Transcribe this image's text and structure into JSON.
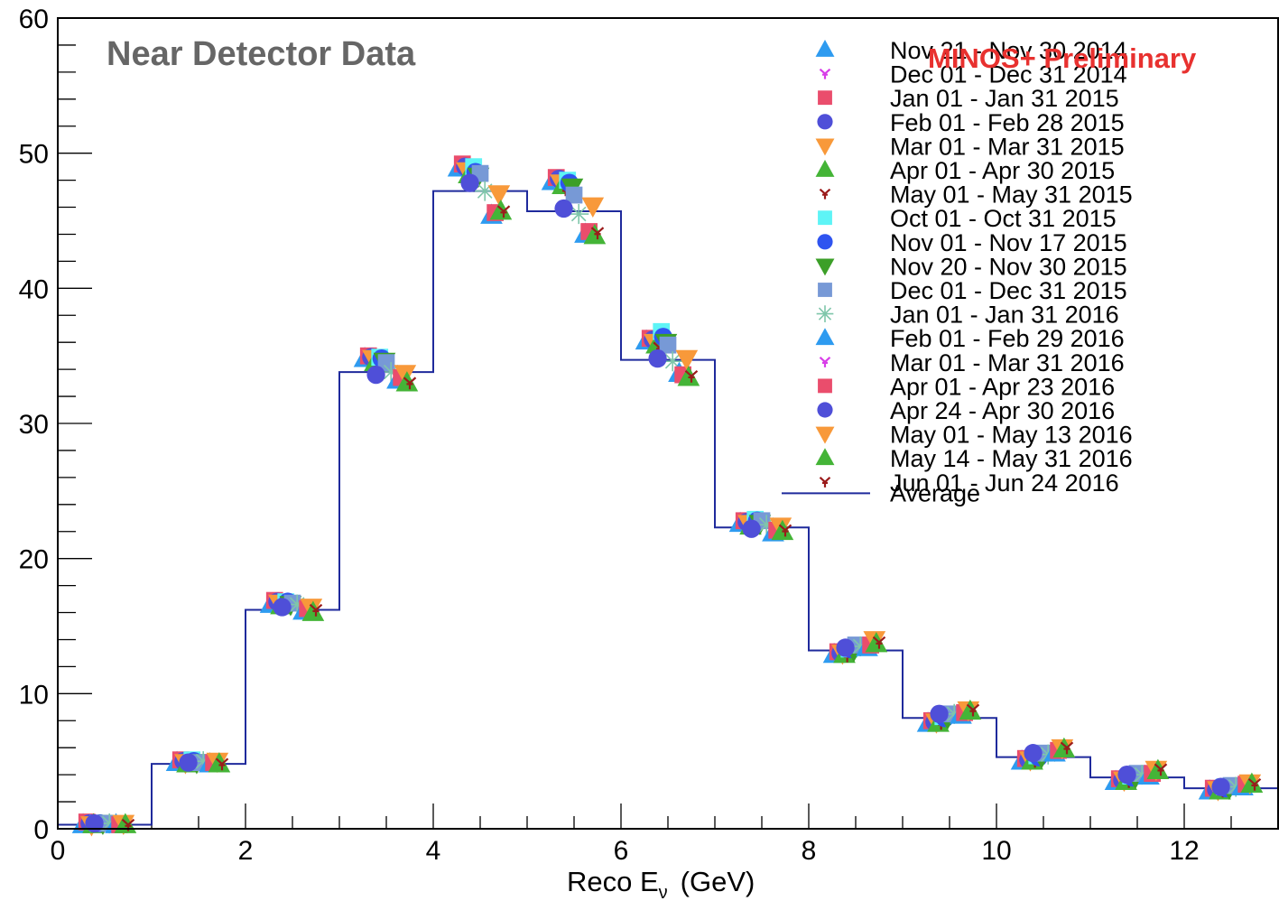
{
  "chart_data": {
    "type": "scatter",
    "title": "Near Detector Data",
    "annotation": "MINOS+ Preliminary",
    "xlabel_main": "Reco E",
    "xlabel_sub": "ν",
    "xlabel_unit": "(GeV)",
    "xlim": [
      0,
      13
    ],
    "ylim": [
      0,
      60
    ],
    "x_ticks": [
      0,
      2,
      4,
      6,
      8,
      10,
      12
    ],
    "y_ticks": [
      0,
      10,
      20,
      30,
      40,
      50,
      60
    ],
    "x_tick_labels": [
      "0",
      "2",
      "4",
      "6",
      "8",
      "10",
      "12"
    ],
    "y_tick_labels": [
      "0",
      "10",
      "20",
      "30",
      "40",
      "50",
      "60"
    ],
    "grid": false,
    "legend_position": "top-right",
    "bin_edges": [
      0,
      1,
      2,
      3,
      4,
      5,
      6,
      7,
      8,
      9,
      10,
      11,
      12,
      13
    ],
    "average": {
      "name": "Average",
      "color": "#1f2a9c",
      "values": [
        0.3,
        4.8,
        16.2,
        33.8,
        47.2,
        45.7,
        34.7,
        22.3,
        13.2,
        8.2,
        5.3,
        3.8,
        3.0
      ]
    },
    "series": [
      {
        "name": "Nov 21 - Nov 30 2014",
        "marker": "triangle",
        "color": "#2e9bf0",
        "offset": -0.23,
        "values": [
          0.3,
          4.9,
          16.6,
          34.8,
          48.9,
          47.9,
          36.1,
          22.6,
          12.9,
          7.8,
          5.0,
          3.5,
          2.8
        ]
      },
      {
        "name": "Dec 01 - Dec 31 2014",
        "marker": "star",
        "color": "#d83ee8",
        "offset": -0.21,
        "values": [
          0.4,
          5.0,
          16.8,
          34.9,
          49.0,
          48.0,
          36.2,
          22.7,
          13.0,
          7.9,
          5.1,
          3.6,
          2.9
        ]
      },
      {
        "name": "Jan 01 - Jan 31 2015",
        "marker": "square",
        "color": "#ea4d6c",
        "offset": -0.19,
        "values": [
          0.5,
          5.1,
          16.9,
          35.0,
          49.2,
          48.2,
          36.3,
          22.8,
          13.1,
          8.0,
          5.2,
          3.7,
          3.0
        ]
      },
      {
        "name": "Feb 01 - Feb 28 2015",
        "marker": "circle",
        "color": "#4f4fd8",
        "offset": -0.16,
        "values": [
          0.4,
          5.0,
          16.8,
          34.9,
          49.0,
          48.1,
          36.2,
          22.7,
          13.0,
          7.9,
          5.1,
          3.6,
          2.9
        ]
      },
      {
        "name": "Mar 01 - Mar 31 2015",
        "marker": "triangle-down",
        "color": "#f8993a",
        "offset": -0.14,
        "values": [
          0.3,
          4.9,
          16.7,
          34.8,
          48.7,
          47.8,
          36.0,
          22.6,
          13.0,
          7.9,
          5.1,
          3.6,
          2.9
        ]
      },
      {
        "name": "Apr 01 - Apr 30 2015",
        "marker": "triangle",
        "color": "#44b437",
        "offset": -0.12,
        "values": [
          0.3,
          4.8,
          16.5,
          34.5,
          48.4,
          47.6,
          35.8,
          22.4,
          12.9,
          7.8,
          5.0,
          3.5,
          2.8
        ]
      },
      {
        "name": "May 01 - May 31 2015",
        "marker": "star",
        "color": "#9b1b1b",
        "offset": -0.09,
        "values": [
          0.3,
          4.8,
          16.5,
          34.4,
          48.0,
          47.3,
          35.6,
          22.3,
          12.8,
          7.8,
          5.0,
          3.5,
          2.8
        ]
      },
      {
        "name": "Oct 01 - Oct 31 2015",
        "marker": "square",
        "color": "#5ef4f6",
        "offset": -0.07,
        "values": [
          0.4,
          5.1,
          16.8,
          34.9,
          49.0,
          48.0,
          36.8,
          22.9,
          13.3,
          8.3,
          5.4,
          3.9,
          3.1
        ]
      },
      {
        "name": "Nov 01 - Nov 17 2015",
        "marker": "circle",
        "color": "#2f54f0",
        "offset": -0.05,
        "values": [
          0.4,
          5.0,
          16.8,
          34.8,
          48.6,
          47.8,
          36.4,
          22.8,
          13.3,
          8.2,
          5.3,
          3.8,
          3.0
        ]
      },
      {
        "name": "Nov 20 - Nov 30 2015",
        "marker": "triangle-down",
        "color": "#3c9f28",
        "offset": -0.02,
        "values": [
          0.4,
          4.9,
          16.6,
          34.6,
          48.3,
          47.5,
          36.0,
          22.6,
          13.2,
          8.2,
          5.3,
          3.8,
          3.0
        ]
      },
      {
        "name": "Dec 01 - Dec 31 2015",
        "marker": "square",
        "color": "#7799d6",
        "offset": 0.0,
        "values": [
          0.4,
          4.9,
          16.7,
          34.5,
          48.5,
          46.9,
          35.8,
          22.8,
          13.6,
          8.5,
          5.6,
          4.1,
          3.2
        ]
      },
      {
        "name": "Jan 01 - Jan 31 2016",
        "marker": "asterisk",
        "color": "#7fc6aa",
        "offset": 0.05,
        "values": [
          0.4,
          5.0,
          16.6,
          33.8,
          47.2,
          45.5,
          34.6,
          22.5,
          13.5,
          8.5,
          5.5,
          4.0,
          3.1
        ]
      },
      {
        "name": "Feb 01 - Feb 29 2016",
        "marker": "triangle",
        "color": "#2e9bf0",
        "offset": 0.12,
        "values": [
          0.3,
          4.8,
          16.1,
          33.2,
          45.4,
          44.0,
          33.7,
          21.9,
          13.4,
          8.4,
          5.6,
          3.9,
          3.1
        ]
      },
      {
        "name": "Mar 01 - Mar 31 2016",
        "marker": "star",
        "color": "#d83ee8",
        "offset": 0.14,
        "values": [
          0.3,
          4.8,
          16.2,
          33.3,
          45.5,
          44.1,
          33.8,
          22.0,
          13.5,
          8.5,
          5.7,
          4.0,
          3.2
        ]
      },
      {
        "name": "Apr 01 - Apr 23 2016",
        "marker": "square",
        "color": "#ea4d6c",
        "offset": 0.16,
        "values": [
          0.3,
          4.9,
          16.3,
          33.4,
          45.6,
          44.2,
          33.6,
          22.1,
          13.6,
          8.6,
          5.8,
          4.1,
          3.3
        ]
      },
      {
        "name": "Apr 24 - Apr 30 2016",
        "marker": "circle",
        "color": "#4f4fd8",
        "offset": -0.11,
        "values": [
          0.4,
          4.9,
          16.4,
          33.6,
          47.8,
          45.9,
          34.8,
          22.2,
          13.4,
          8.5,
          5.6,
          4.0,
          3.1
        ]
      },
      {
        "name": "May 01 - May 13 2016",
        "marker": "triangle-down",
        "color": "#f8993a",
        "offset": 0.2,
        "values": [
          0.4,
          5.0,
          16.4,
          33.7,
          47.0,
          46.1,
          34.8,
          22.4,
          14.0,
          8.8,
          6.0,
          4.4,
          3.4
        ]
      },
      {
        "name": "May 14 - May 31 2016",
        "marker": "triangle",
        "color": "#44b437",
        "offset": 0.22,
        "values": [
          0.3,
          4.8,
          16.0,
          33.0,
          45.7,
          43.9,
          33.4,
          22.0,
          13.7,
          8.7,
          5.9,
          4.3,
          3.3
        ]
      },
      {
        "name": "Jun 01 - Jun 24 2016",
        "marker": "star",
        "color": "#9b1b1b",
        "offset": 0.25,
        "values": [
          0.3,
          4.8,
          16.2,
          33.0,
          45.7,
          44.1,
          33.5,
          22.1,
          13.8,
          8.8,
          6.0,
          4.4,
          3.3
        ]
      }
    ]
  }
}
